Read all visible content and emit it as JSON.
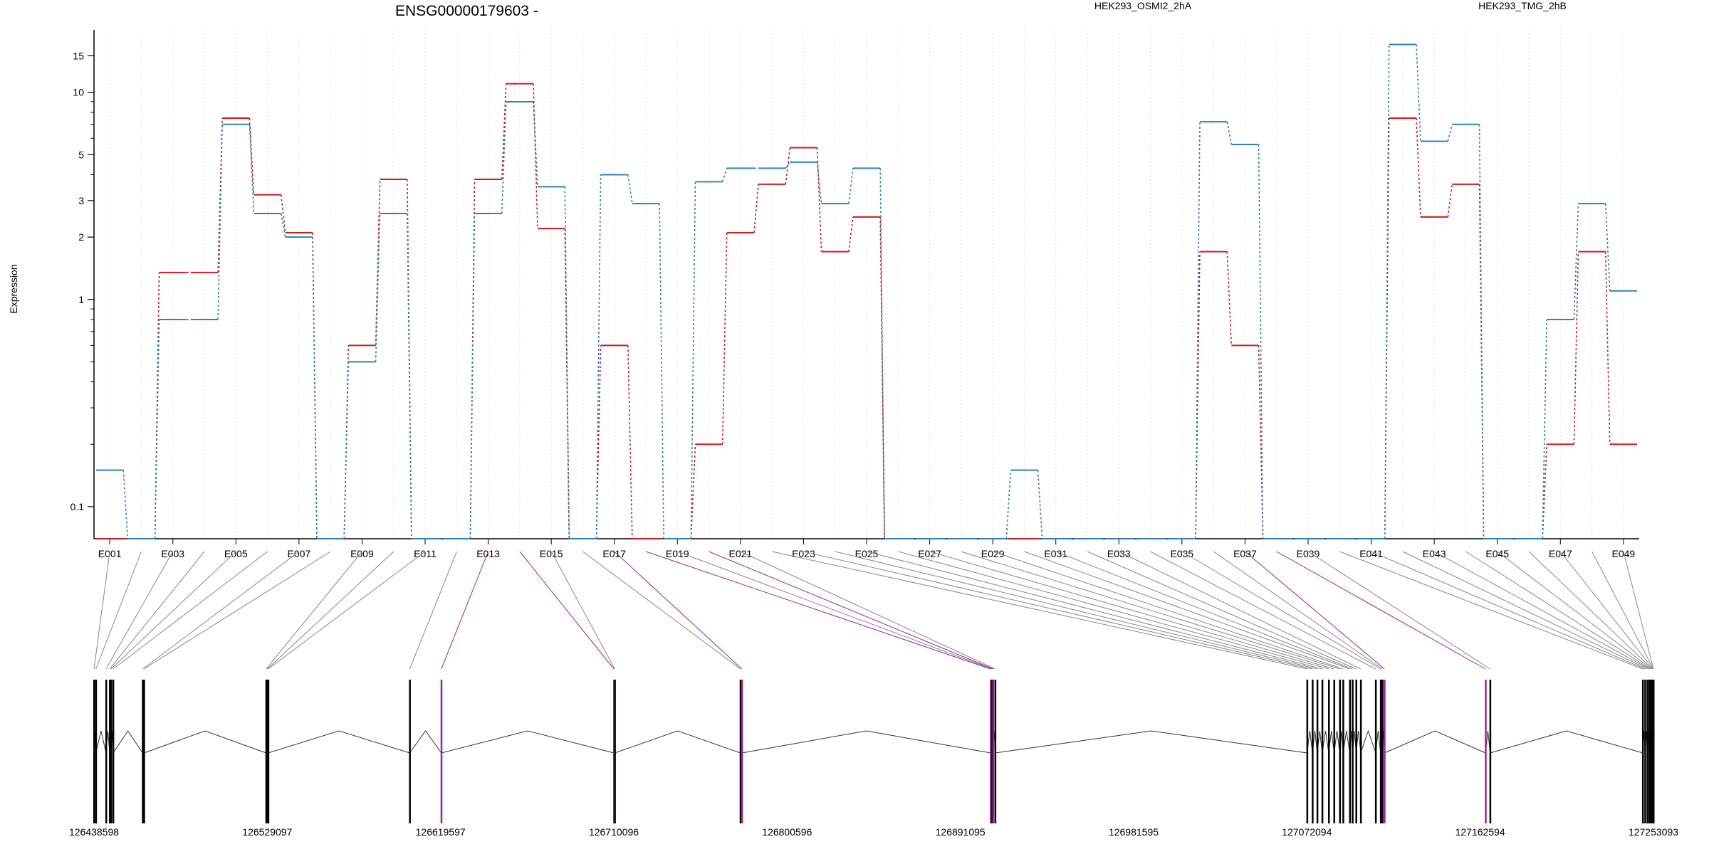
{
  "chart_data": {
    "type": "line",
    "title": "ENSG00000179603 -",
    "ylabel": "Expression",
    "xlabel": "",
    "yscale": "log",
    "ylim": [
      0.07,
      20
    ],
    "yticks": [
      0.1,
      1,
      2,
      3,
      5,
      10,
      15
    ],
    "grid": "vertical dotted",
    "legend_position": "top-right",
    "categories": [
      "E001",
      "E002",
      "E003",
      "E004",
      "E005",
      "E006",
      "E007",
      "E008",
      "E009",
      "E010",
      "E011",
      "E012",
      "E013",
      "E014",
      "E015",
      "E016",
      "E017",
      "E018",
      "E019",
      "E020",
      "E021",
      "E022",
      "E023",
      "E024",
      "E025",
      "E026",
      "E027",
      "E028",
      "E029",
      "E030",
      "E031",
      "E032",
      "E033",
      "E034",
      "E035",
      "E036",
      "E037",
      "E038",
      "E039",
      "E040",
      "E041",
      "E042",
      "E043",
      "E044",
      "E045",
      "E046",
      "E047",
      "E048",
      "E049"
    ],
    "xtick_labels": [
      "E001",
      "E003",
      "E005",
      "E007",
      "E009",
      "E011",
      "E013",
      "E015",
      "E017",
      "E019",
      "E021",
      "E023",
      "E025",
      "E027",
      "E029",
      "E031",
      "E033",
      "E035",
      "E037",
      "E039",
      "E041",
      "E043",
      "E045",
      "E047",
      "E049"
    ],
    "series": [
      {
        "name": "HEK293_OSMI2_2hA",
        "color": "#d7191c",
        "values": [
          0.07,
          0.07,
          1.35,
          1.35,
          7.5,
          3.2,
          2.1,
          0.07,
          0.6,
          3.8,
          0.07,
          0.07,
          3.8,
          11,
          2.2,
          0.07,
          0.6,
          0.07,
          0.07,
          0.2,
          2.1,
          3.6,
          5.4,
          1.7,
          2.5,
          0.07,
          0.07,
          0.07,
          0.07,
          0.07,
          0.07,
          0.07,
          0.07,
          0.07,
          0.07,
          1.7,
          0.6,
          0.07,
          0.07,
          0.07,
          0.07,
          7.5,
          2.5,
          3.6,
          0.07,
          0.07,
          0.2,
          1.7,
          0.2
        ]
      },
      {
        "name": "HEK293_TMG_2hB",
        "color": "#2b83ba",
        "values": [
          0.15,
          0.07,
          0.8,
          0.8,
          7.0,
          2.6,
          2.0,
          0.07,
          0.5,
          2.6,
          0.07,
          0.07,
          2.6,
          9.0,
          3.5,
          0.07,
          4.0,
          2.9,
          0.07,
          3.7,
          4.3,
          4.3,
          4.6,
          2.9,
          4.3,
          0.07,
          0.07,
          0.07,
          0.07,
          0.15,
          0.07,
          0.07,
          0.07,
          0.07,
          0.07,
          7.2,
          5.6,
          0.07,
          0.07,
          0.07,
          0.07,
          17,
          5.8,
          7.0,
          0.07,
          0.07,
          0.8,
          2.9,
          1.1
        ]
      }
    ],
    "gene_model": {
      "start": 126438598,
      "end": 127253093,
      "axis_ticks": [
        126438598,
        126529097,
        126619597,
        126710096,
        126800596,
        126891095,
        126981595,
        127072094,
        127162594,
        127253093
      ],
      "exon_positions": [
        126438598,
        126439600,
        126444900,
        126446800,
        126447500,
        126448600,
        126464000,
        126464700,
        126528500,
        126529100,
        126529600,
        126603500,
        126620000,
        126710096,
        126710600,
        126776200,
        126777000,
        126906900,
        126907500,
        126908200,
        126909300,
        127072200,
        127075000,
        127077500,
        127080100,
        127083500,
        127086300,
        127089300,
        127091000,
        127094500,
        127095900,
        127097800,
        127100200,
        127108000,
        127110600,
        127111500,
        127112600,
        127165400,
        127167800,
        127247500,
        127248700,
        127249900,
        127250900,
        127251500,
        127252000,
        127252500,
        127252900,
        127253050,
        127253093
      ],
      "highlighted_exons": [
        "E013",
        "E014",
        "E017",
        "E018",
        "E020",
        "E037",
        "E038"
      ],
      "highlight_color": "#a020a0"
    }
  }
}
